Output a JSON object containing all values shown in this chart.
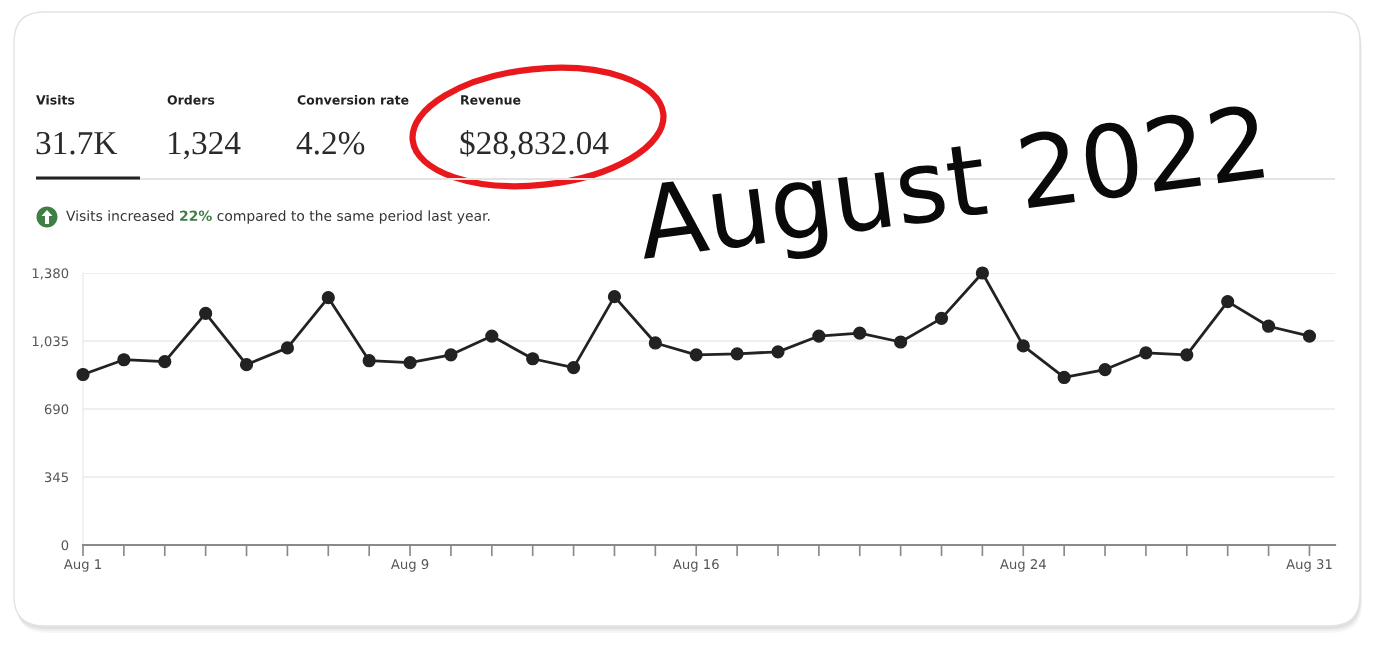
{
  "chart_data": {
    "type": "line",
    "title": "August 2022",
    "annotations": [
      "Visits",
      "31.7K",
      "Orders",
      "1,324",
      "Conversion rate",
      "4.2%",
      "Revenue",
      "$28,832.04",
      "Visits increased",
      "22%",
      "compared to the same period last year."
    ],
    "x": [
      "2022-08-01",
      "2022-08-02",
      "2022-08-03",
      "2022-08-04",
      "2022-08-05",
      "2022-08-06",
      "2022-08-07",
      "2022-08-08",
      "2022-08-09",
      "2022-08-10",
      "2022-08-11",
      "2022-08-12",
      "2022-08-13",
      "2022-08-14",
      "2022-08-15",
      "2022-08-16",
      "2022-08-17",
      "2022-08-18",
      "2022-08-19",
      "2022-08-20",
      "2022-08-21",
      "2022-08-22",
      "2022-08-23",
      "2022-08-24",
      "2022-08-25",
      "2022-08-26",
      "2022-08-27",
      "2022-08-28",
      "2022-08-29",
      "2022-08-30",
      "2022-08-31"
    ],
    "series": [
      {
        "color": "#222222",
        "values": [
          865,
          940,
          930,
          1175,
          915,
          1000,
          1255,
          935,
          925,
          965,
          1060,
          945,
          900,
          1260,
          1025,
          965,
          970,
          980,
          1060,
          1075,
          1030,
          1150,
          1380,
          1010,
          850,
          890,
          975,
          965,
          1235,
          1110,
          1060
        ]
      }
    ],
    "xlim": [
      "2022-08-01",
      "2022-08-31T15:00"
    ],
    "xticks": [
      {
        "value": "2022-08-01",
        "label": "Aug 1"
      },
      {
        "value": "2022-08-02",
        "label": null
      },
      {
        "value": "2022-08-03",
        "label": null
      },
      {
        "value": "2022-08-04",
        "label": null
      },
      {
        "value": "2022-08-05",
        "label": null
      },
      {
        "value": "2022-08-06",
        "label": null
      },
      {
        "value": "2022-08-07",
        "label": null
      },
      {
        "value": "2022-08-08",
        "label": null
      },
      {
        "value": "2022-08-09",
        "label": "Aug 9"
      },
      {
        "value": "2022-08-10",
        "label": null
      },
      {
        "value": "2022-08-11",
        "label": null
      },
      {
        "value": "2022-08-12",
        "label": null
      },
      {
        "value": "2022-08-13",
        "label": null
      },
      {
        "value": "2022-08-14",
        "label": null
      },
      {
        "value": "2022-08-15",
        "label": null
      },
      {
        "value": "2022-08-16",
        "label": "Aug 16"
      },
      {
        "value": "2022-08-17",
        "label": null
      },
      {
        "value": "2022-08-18",
        "label": null
      },
      {
        "value": "2022-08-19",
        "label": null
      },
      {
        "value": "2022-08-20",
        "label": null
      },
      {
        "value": "2022-08-21",
        "label": null
      },
      {
        "value": "2022-08-22",
        "label": null
      },
      {
        "value": "2022-08-23",
        "label": null
      },
      {
        "value": "2022-08-24",
        "label": "Aug 24"
      },
      {
        "value": "2022-08-25",
        "label": null
      },
      {
        "value": "2022-08-26",
        "label": null
      },
      {
        "value": "2022-08-27",
        "label": null
      },
      {
        "value": "2022-08-28",
        "label": null
      },
      {
        "value": "2022-08-29",
        "label": null
      },
      {
        "value": "2022-08-30",
        "label": null
      },
      {
        "value": "2022-08-31",
        "label": "Aug 31"
      }
    ],
    "ylim": [
      0,
      1380
    ],
    "yticks": [
      0,
      345,
      690,
      {
        "value": 1035,
        "label": "1,035"
      },
      {
        "value": 1380,
        "label": "1,380"
      }
    ],
    "grid": "y",
    "marker": "circle",
    "line_style": "solid"
  }
}
